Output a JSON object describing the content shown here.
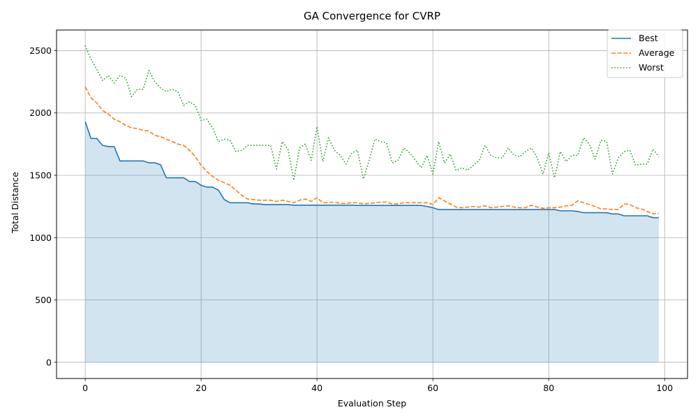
{
  "chart_data": {
    "type": "line",
    "title": "GA Convergence for CVRP",
    "xlabel": "Evaluation Step",
    "ylabel": "Total Distance",
    "xlim": [
      -4.95,
      103.95
    ],
    "ylim": [
      -130,
      2665
    ],
    "xticks": [
      0,
      20,
      40,
      60,
      80,
      100
    ],
    "yticks": [
      0,
      500,
      1000,
      1500,
      2000,
      2500
    ],
    "grid": true,
    "legend_position": "top-right",
    "fill_under": "Best",
    "x": [
      0,
      1,
      2,
      3,
      4,
      5,
      6,
      7,
      8,
      9,
      10,
      11,
      12,
      13,
      14,
      15,
      16,
      17,
      18,
      19,
      20,
      21,
      22,
      23,
      24,
      25,
      26,
      27,
      28,
      29,
      30,
      31,
      32,
      33,
      34,
      35,
      36,
      37,
      38,
      39,
      40,
      41,
      42,
      43,
      44,
      45,
      46,
      47,
      48,
      49,
      50,
      51,
      52,
      53,
      54,
      55,
      56,
      57,
      58,
      59,
      60,
      61,
      62,
      63,
      64,
      65,
      66,
      67,
      68,
      69,
      70,
      71,
      72,
      73,
      74,
      75,
      76,
      77,
      78,
      79,
      80,
      81,
      82,
      83,
      84,
      85,
      86,
      87,
      88,
      89,
      90,
      91,
      92,
      93,
      94,
      95,
      96,
      97,
      98,
      99
    ],
    "series": [
      {
        "name": "Best",
        "color": "#1f77b4",
        "style": "solid",
        "values": [
          1930,
          1795,
          1795,
          1740,
          1730,
          1730,
          1615,
          1615,
          1615,
          1615,
          1615,
          1600,
          1600,
          1585,
          1480,
          1480,
          1480,
          1480,
          1450,
          1450,
          1420,
          1405,
          1405,
          1380,
          1305,
          1280,
          1280,
          1280,
          1280,
          1270,
          1270,
          1265,
          1265,
          1265,
          1265,
          1265,
          1260,
          1260,
          1260,
          1260,
          1260,
          1260,
          1260,
          1260,
          1260,
          1260,
          1260,
          1258,
          1258,
          1258,
          1258,
          1258,
          1258,
          1258,
          1258,
          1258,
          1258,
          1258,
          1258,
          1250,
          1240,
          1225,
          1225,
          1225,
          1225,
          1225,
          1225,
          1225,
          1225,
          1225,
          1225,
          1225,
          1225,
          1225,
          1225,
          1225,
          1225,
          1225,
          1225,
          1225,
          1225,
          1225,
          1215,
          1215,
          1215,
          1210,
          1200,
          1200,
          1200,
          1200,
          1200,
          1190,
          1190,
          1175,
          1175,
          1175,
          1175,
          1175,
          1160,
          1160
        ]
      },
      {
        "name": "Average",
        "color": "#ff7f0e",
        "style": "dashed",
        "values": [
          2210,
          2120,
          2080,
          2020,
          1990,
          1950,
          1930,
          1900,
          1880,
          1875,
          1860,
          1855,
          1820,
          1810,
          1790,
          1770,
          1750,
          1740,
          1700,
          1650,
          1580,
          1530,
          1490,
          1460,
          1440,
          1420,
          1380,
          1340,
          1310,
          1305,
          1300,
          1300,
          1300,
          1290,
          1300,
          1290,
          1280,
          1300,
          1310,
          1290,
          1320,
          1280,
          1280,
          1285,
          1275,
          1275,
          1280,
          1280,
          1270,
          1275,
          1280,
          1285,
          1285,
          1270,
          1270,
          1280,
          1280,
          1280,
          1280,
          1280,
          1265,
          1320,
          1295,
          1270,
          1245,
          1240,
          1245,
          1250,
          1245,
          1255,
          1240,
          1245,
          1250,
          1255,
          1245,
          1240,
          1240,
          1260,
          1245,
          1235,
          1240,
          1240,
          1245,
          1255,
          1260,
          1295,
          1280,
          1265,
          1250,
          1230,
          1230,
          1225,
          1225,
          1270,
          1265,
          1240,
          1230,
          1210,
          1190,
          1195
        ]
      },
      {
        "name": "Worst",
        "color": "#2ca02c",
        "style": "dotted",
        "values": [
          2540,
          2430,
          2350,
          2260,
          2300,
          2240,
          2300,
          2280,
          2130,
          2190,
          2190,
          2340,
          2250,
          2200,
          2170,
          2190,
          2170,
          2060,
          2090,
          2060,
          1940,
          1950,
          1880,
          1770,
          1790,
          1780,
          1690,
          1700,
          1740,
          1740,
          1740,
          1740,
          1740,
          1550,
          1770,
          1710,
          1460,
          1720,
          1750,
          1620,
          1890,
          1610,
          1800,
          1700,
          1660,
          1590,
          1680,
          1700,
          1470,
          1620,
          1790,
          1770,
          1760,
          1600,
          1620,
          1720,
          1680,
          1620,
          1560,
          1660,
          1510,
          1770,
          1600,
          1670,
          1540,
          1560,
          1540,
          1580,
          1620,
          1740,
          1660,
          1640,
          1640,
          1720,
          1660,
          1650,
          1690,
          1720,
          1640,
          1510,
          1680,
          1480,
          1690,
          1610,
          1660,
          1660,
          1800,
          1750,
          1630,
          1780,
          1770,
          1510,
          1640,
          1690,
          1700,
          1580,
          1590,
          1590,
          1710,
          1650
        ]
      }
    ]
  }
}
